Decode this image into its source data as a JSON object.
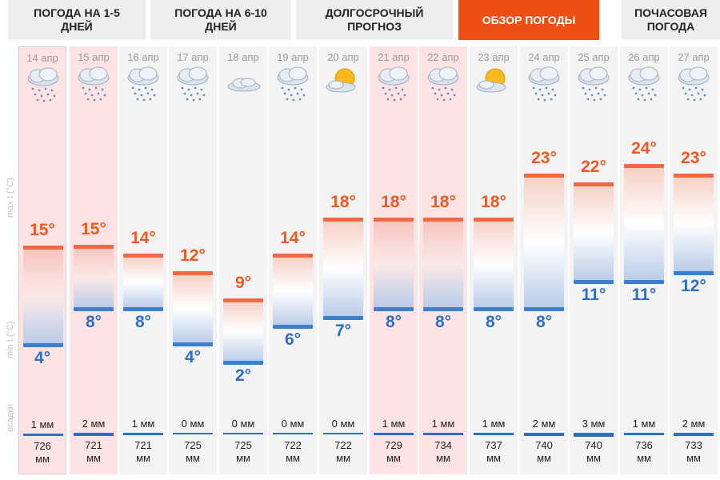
{
  "tabs": [
    {
      "line1": "ПОГОДА НА 1-5",
      "line2": "ДНЕЙ",
      "active": false
    },
    {
      "line1": "ПОГОДА НА 6-10",
      "line2": "ДНЕЙ",
      "active": false
    },
    {
      "line1": "ДОЛГОСРОЧНЫЙ",
      "line2": "ПРОГНОЗ",
      "active": false
    },
    {
      "line1": "ОБЗОР ПОГОДЫ",
      "line2": "",
      "active": true
    },
    {
      "line1": "ПОЧАСОВАЯ",
      "line2": "ПОГОДА",
      "active": false
    }
  ],
  "side_labels": {
    "max": "max t (°C)",
    "min": "min t (°C)",
    "precip": "осадки"
  },
  "colors": {
    "accent": "#f04f14",
    "max_temp": "#ec5a24",
    "min_temp": "#2e6fc5"
  },
  "days": [
    {
      "date": "14 апр",
      "icon": "rain-cloud-icon",
      "tmax": "15°",
      "tmin": "4°",
      "max": 15,
      "min": 4,
      "precip": "1 мм",
      "precip_mm": 1,
      "pressure": "726",
      "pressure_unit": "мм",
      "weekend": true,
      "today": true
    },
    {
      "date": "15 апр",
      "icon": "rain-cloud-icon",
      "tmax": "15°",
      "tmin": "8°",
      "max": 15,
      "min": 8,
      "precip": "2 мм",
      "precip_mm": 2,
      "pressure": "721",
      "pressure_unit": "мм",
      "weekend": true,
      "today": false
    },
    {
      "date": "16 апр",
      "icon": "rain-cloud-icon",
      "tmax": "14°",
      "tmin": "8°",
      "max": 14,
      "min": 8,
      "precip": "1 мм",
      "precip_mm": 1,
      "pressure": "721",
      "pressure_unit": "мм",
      "weekend": false,
      "today": false
    },
    {
      "date": "17 апр",
      "icon": "rain-cloud-icon",
      "tmax": "12°",
      "tmin": "4°",
      "max": 12,
      "min": 4,
      "precip": "0 мм",
      "precip_mm": 0,
      "pressure": "725",
      "pressure_unit": "мм",
      "weekend": false,
      "today": false
    },
    {
      "date": "18 апр",
      "icon": "cloud-icon",
      "tmax": "9°",
      "tmin": "2°",
      "max": 9,
      "min": 2,
      "precip": "0 мм",
      "precip_mm": 0,
      "pressure": "725",
      "pressure_unit": "мм",
      "weekend": false,
      "today": false
    },
    {
      "date": "19 апр",
      "icon": "rain-cloud-icon",
      "tmax": "14°",
      "tmin": "6°",
      "max": 14,
      "min": 6,
      "precip": "0 мм",
      "precip_mm": 0,
      "pressure": "722",
      "pressure_unit": "мм",
      "weekend": false,
      "today": false
    },
    {
      "date": "20 апр",
      "icon": "sun-cloud-icon",
      "tmax": "18°",
      "tmin": "7°",
      "max": 18,
      "min": 7,
      "precip": "0 мм",
      "precip_mm": 0,
      "pressure": "722",
      "pressure_unit": "мм",
      "weekend": false,
      "today": false
    },
    {
      "date": "21 апр",
      "icon": "rain-cloud-icon",
      "tmax": "18°",
      "tmin": "8°",
      "max": 18,
      "min": 8,
      "precip": "1 мм",
      "precip_mm": 1,
      "pressure": "729",
      "pressure_unit": "мм",
      "weekend": true,
      "today": false
    },
    {
      "date": "22 апр",
      "icon": "rain-cloud-icon",
      "tmax": "18°",
      "tmin": "8°",
      "max": 18,
      "min": 8,
      "precip": "1 мм",
      "precip_mm": 1,
      "pressure": "734",
      "pressure_unit": "мм",
      "weekend": true,
      "today": false
    },
    {
      "date": "23 апр",
      "icon": "sun-cloud-icon",
      "tmax": "18°",
      "tmin": "8°",
      "max": 18,
      "min": 8,
      "precip": "1 мм",
      "precip_mm": 1,
      "pressure": "737",
      "pressure_unit": "мм",
      "weekend": false,
      "today": false
    },
    {
      "date": "24 апр",
      "icon": "rain-cloud-icon",
      "tmax": "23°",
      "tmin": "8°",
      "max": 23,
      "min": 8,
      "precip": "2 мм",
      "precip_mm": 2,
      "pressure": "740",
      "pressure_unit": "мм",
      "weekend": false,
      "today": false
    },
    {
      "date": "25 апр",
      "icon": "rain-cloud-icon",
      "tmax": "22°",
      "tmin": "11°",
      "max": 22,
      "min": 11,
      "precip": "3 мм",
      "precip_mm": 3,
      "pressure": "740",
      "pressure_unit": "мм",
      "weekend": false,
      "today": false
    },
    {
      "date": "26 апр",
      "icon": "rain-cloud-icon",
      "tmax": "24°",
      "tmin": "11°",
      "max": 24,
      "min": 11,
      "precip": "1 мм",
      "precip_mm": 1,
      "pressure": "736",
      "pressure_unit": "мм",
      "weekend": false,
      "today": false
    },
    {
      "date": "27 апр",
      "icon": "rain-cloud-icon",
      "tmax": "23°",
      "tmin": "12°",
      "max": 23,
      "min": 12,
      "precip": "2 мм",
      "precip_mm": 2,
      "pressure": "733",
      "pressure_unit": "мм",
      "weekend": false,
      "today": false
    }
  ]
}
